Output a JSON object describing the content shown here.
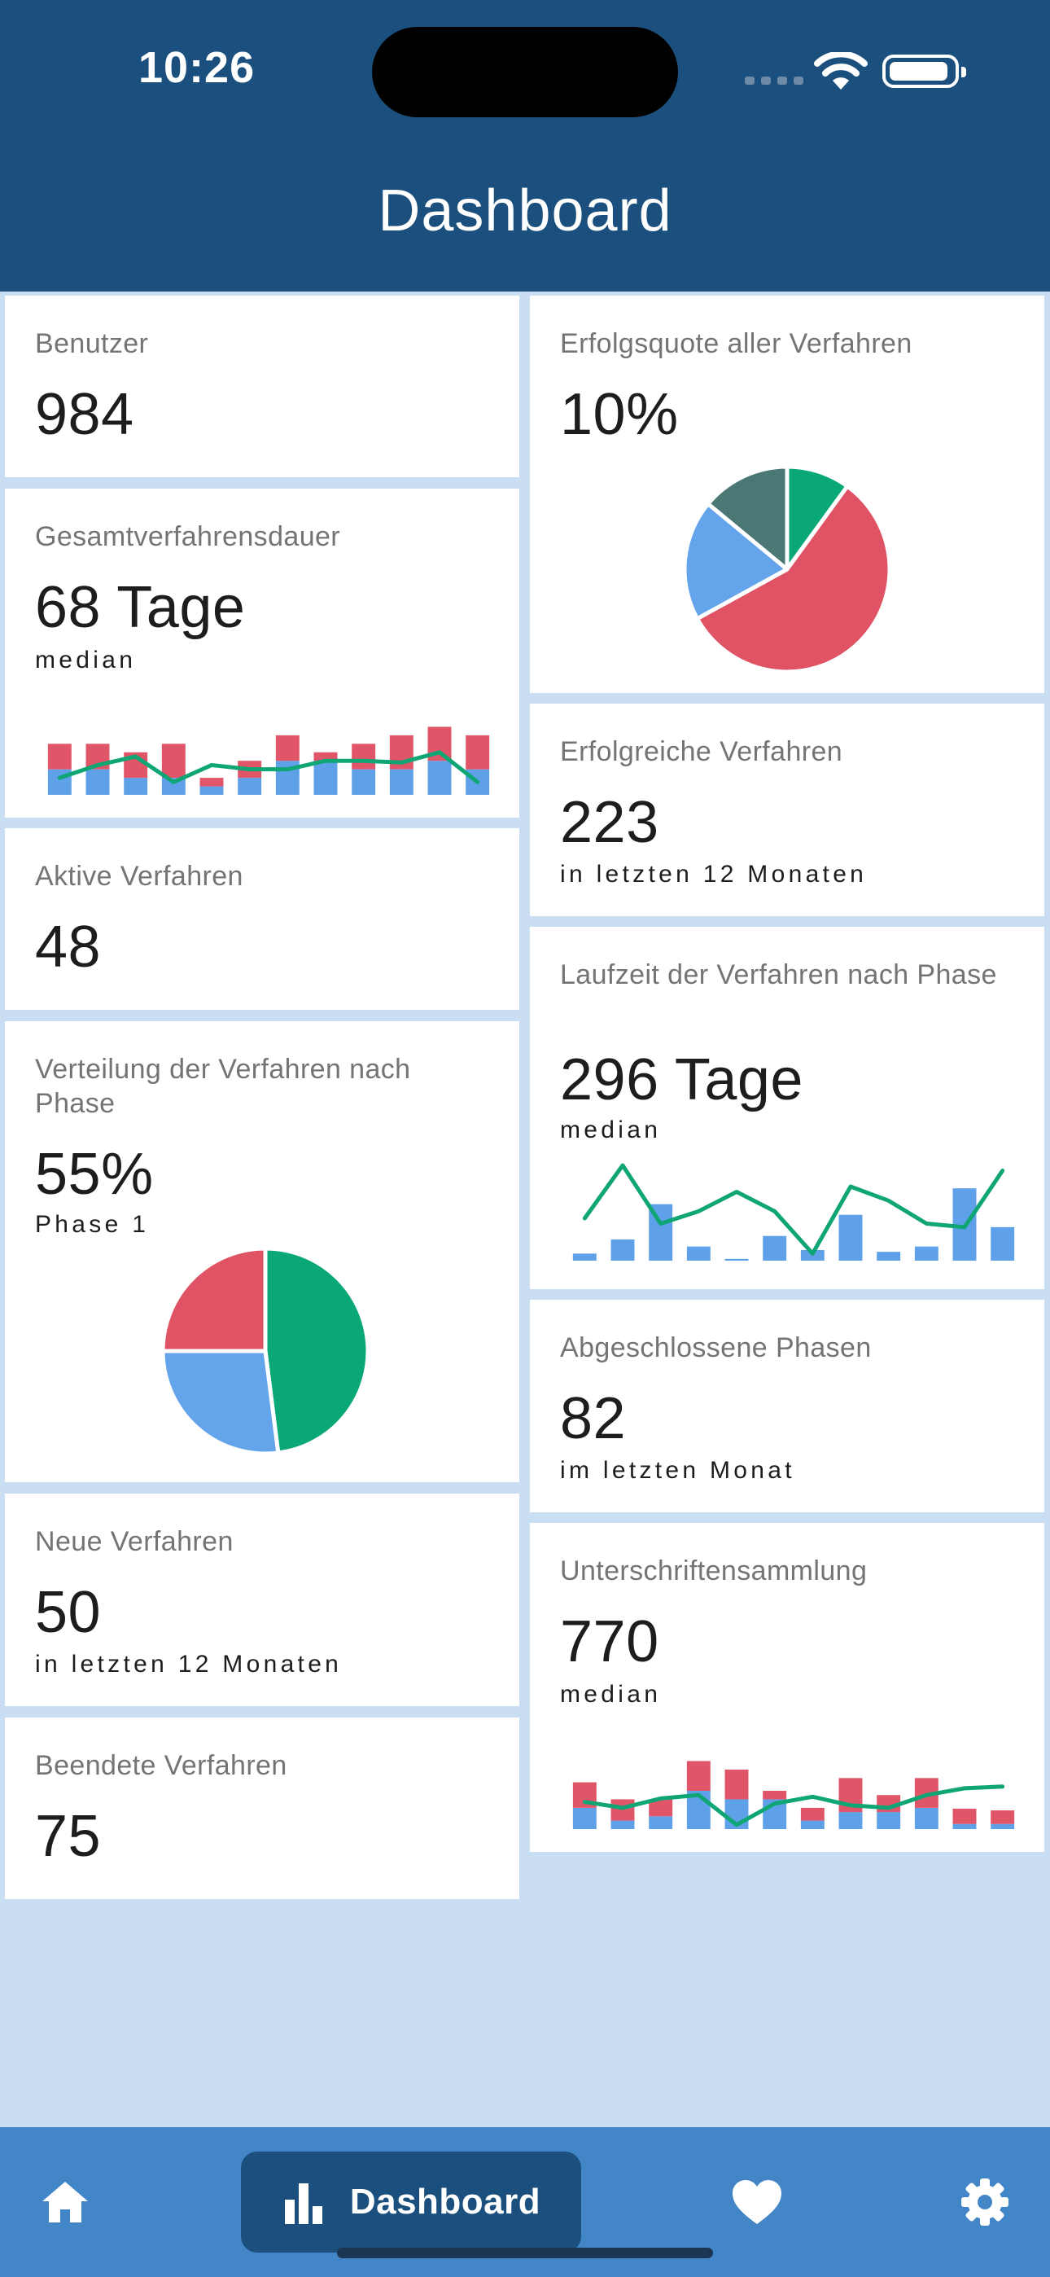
{
  "status_bar": {
    "time": "10:26"
  },
  "header": {
    "title": "Dashboard"
  },
  "cards": {
    "benutzer": {
      "title": "Benutzer",
      "value": "984"
    },
    "gesamtdauer": {
      "title": "Gesamtverfahrensdauer",
      "value": "68 Tage",
      "sub": "median",
      "chart_data": {
        "type": "bar",
        "categories": [
          "1",
          "2",
          "3",
          "4",
          "5",
          "6",
          "7",
          "8",
          "9",
          "10",
          "11",
          "12"
        ],
        "series": [
          {
            "color": "#5fa1e9",
            "values": [
              3,
              3,
              2,
              2,
              1,
              2,
              4,
              4,
              3,
              3,
              4,
              3
            ]
          },
          {
            "color": "#e05567",
            "values": [
              3,
              3,
              3,
              4,
              1,
              2,
              3,
              1,
              3,
              4,
              4,
              4
            ]
          }
        ],
        "line": {
          "color": "#0fa574",
          "values": [
            2,
            3.5,
            4.5,
            1.5,
            3.5,
            3,
            3,
            4,
            4,
            3.8,
            5,
            1.5
          ]
        },
        "ylim": [
          0,
          9
        ],
        "grid": false
      }
    },
    "aktive": {
      "title": "Aktive Verfahren",
      "value": "48"
    },
    "verteilung": {
      "title": "Verteilung der Verfahren nach Phase",
      "value": "55%",
      "sub": "Phase 1",
      "chart_data": {
        "type": "pie",
        "slices": [
          {
            "value": 48,
            "color": "#0aa777"
          },
          {
            "value": 27,
            "color": "#64a4ea"
          },
          {
            "value": 25,
            "color": "#e05364"
          }
        ]
      }
    },
    "neue": {
      "title": "Neue Verfahren",
      "value": "50",
      "sub": "in letzten 12 Monaten"
    },
    "beendete": {
      "title": "Beendete Verfahren",
      "value": "75"
    },
    "erfolgsquote": {
      "title": "Erfolgsquote aller Verfahren",
      "value": "10%",
      "chart_data": {
        "type": "pie",
        "slices": [
          {
            "value": 10,
            "color": "#0aa777"
          },
          {
            "value": 57,
            "color": "#e05364"
          },
          {
            "value": 19,
            "color": "#64a4ea"
          },
          {
            "value": 14,
            "color": "#4b7775"
          }
        ]
      }
    },
    "erfolgreiche": {
      "title": "Erfolgreiche Verfahren",
      "value": "223",
      "sub": "in letzten 12 Monaten"
    },
    "laufzeit": {
      "title": "Laufzeit der Verfahren nach Phase",
      "value": "296 Tage",
      "sub": "median",
      "chart_data": {
        "type": "bar",
        "categories": [
          "1",
          "2",
          "3",
          "4",
          "5",
          "6",
          "7",
          "8",
          "9",
          "10",
          "11",
          "12"
        ],
        "series": [
          {
            "color": "#5fa1e9",
            "values": [
              0.4,
              1.2,
              3.2,
              0.8,
              0.1,
              1.4,
              0.6,
              2.6,
              0.5,
              0.8,
              4.1,
              1.9
            ]
          }
        ],
        "line": {
          "color": "#0fa574",
          "values": [
            2.4,
            5.4,
            2.1,
            2.8,
            3.9,
            2.8,
            0.4,
            4.2,
            3.4,
            2.1,
            1.9,
            5.1
          ]
        },
        "ylim": [
          0,
          6
        ],
        "grid": false
      }
    },
    "abgeschlossene": {
      "title": "Abgeschlossene Phasen",
      "value": "82",
      "sub": "im letzten Monat"
    },
    "unterschriften": {
      "title": "Unterschriftensammlung",
      "value": "770",
      "sub": "median",
      "chart_data": {
        "type": "bar",
        "categories": [
          "1",
          "2",
          "3",
          "4",
          "5",
          "6",
          "7",
          "8",
          "9",
          "10",
          "11",
          "12"
        ],
        "series": [
          {
            "color": "#5fa1e9",
            "values": [
              2.5,
              1,
              1.5,
              4.5,
              3.5,
              3.5,
              1,
              2,
              2,
              2.5,
              0.6,
              0.6
            ]
          },
          {
            "color": "#e05567",
            "values": [
              3,
              2.5,
              2,
              3.5,
              3.5,
              1,
              1.5,
              4,
              2,
              3.5,
              1.8,
              1.6
            ]
          }
        ],
        "line": {
          "color": "#0fa574",
          "values": [
            3.2,
            2.5,
            3.6,
            4,
            0.5,
            3,
            3.8,
            2.8,
            2.5,
            4,
            4.8,
            5
          ]
        },
        "ylim": [
          0,
          9
        ],
        "grid": false
      }
    }
  },
  "bottom_nav": {
    "items": [
      {
        "id": "home",
        "icon": "home-icon"
      },
      {
        "id": "dashboard",
        "icon": "bar-chart-icon",
        "label": "Dashboard",
        "active": true
      },
      {
        "id": "favorites",
        "icon": "heart-icon"
      },
      {
        "id": "settings",
        "icon": "gear-icon"
      }
    ]
  }
}
